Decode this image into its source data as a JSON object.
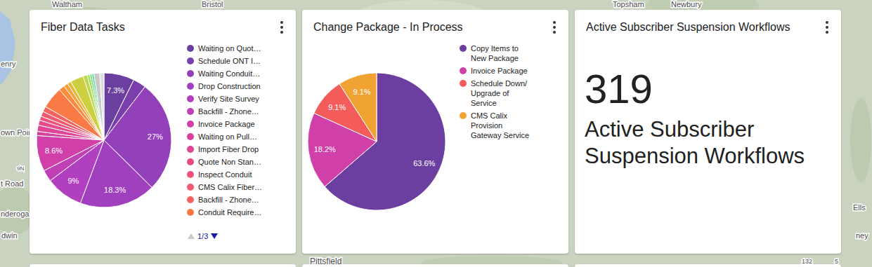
{
  "chart_data": [
    {
      "type": "pie",
      "title": "Fiber Data Tasks",
      "categories": [
        "Waiting on Quot…",
        "Schedule ONT I…",
        "Waiting Conduit…",
        "Drop Construction",
        "Verify Site Survey",
        "Backfill - Zhone…",
        "Invoice Package",
        "Waiting on Pull…",
        "Import Fiber Drop",
        "Quote Non Stan…",
        "Inspect Conduit",
        "CMS Calix Fiber…",
        "Backfill - Zhone…",
        "Conduit Require…",
        null,
        null,
        null,
        null,
        null,
        null,
        null,
        null,
        null,
        null
      ],
      "values": [
        7.3,
        3.1,
        27,
        18.3,
        9,
        2.8,
        8.6,
        1,
        1.5,
        1.2,
        1,
        1.2,
        1.3,
        5.2,
        1.4,
        1,
        0.9,
        3.2,
        1,
        0.6,
        0.5,
        0.5,
        1.4,
        1
      ],
      "value_labels": [
        "7.3%",
        null,
        "27%",
        "18.3%",
        "9%",
        null,
        "8.6%",
        null,
        null,
        null,
        null,
        null,
        null,
        null,
        null,
        null,
        null,
        null,
        null,
        null,
        null,
        null,
        null,
        null
      ],
      "colors": [
        "#6b3fa0",
        "#7a3fac",
        "#9340bb",
        "#a040be",
        "#b040bf",
        "#c040b5",
        "#d040a8",
        "#d8409e",
        "#e04494",
        "#e84a88",
        "#ee527b",
        "#f25a6e",
        "#f66260",
        "#fa7a45",
        "#fb8c3c",
        "#f8a03a",
        "#e8b83a",
        "#ccd040",
        "#b8d84a",
        "#98e050",
        "#70e070",
        "#50d8a0",
        "#c8c8c8",
        "#dddddd"
      ],
      "data_labels": true,
      "legend": "right",
      "legend_page": "1/3"
    },
    {
      "type": "pie",
      "title": "Change Package - In Process",
      "categories": [
        "Copy Items to New Package",
        "Invoice Package",
        "Schedule Down/ Upgrade of Service",
        "CMS Calix Provision Gateway Service"
      ],
      "values": [
        63.6,
        18.2,
        9.1,
        9.1
      ],
      "value_labels": [
        "63.6%",
        "18.2%",
        "9.1%",
        "9.1%"
      ],
      "colors": [
        "#6b3fa0",
        "#d040a8",
        "#f45c5c",
        "#f0a232"
      ],
      "data_labels": true,
      "legend": "right"
    },
    {
      "type": "kpi",
      "title": "Active Subscriber Suspension Workflows",
      "value": 319,
      "label": "Active Subscriber Suspension Workflows"
    }
  ],
  "background_map": {
    "labels": [
      "Waltham",
      "Bristol",
      "Topsham",
      "Newbury",
      "enry",
      "own Point",
      "t Road",
      "nderoga",
      "dwin",
      "9N",
      "Pittsfield",
      "132",
      "5",
      "Ells",
      "ney"
    ]
  }
}
